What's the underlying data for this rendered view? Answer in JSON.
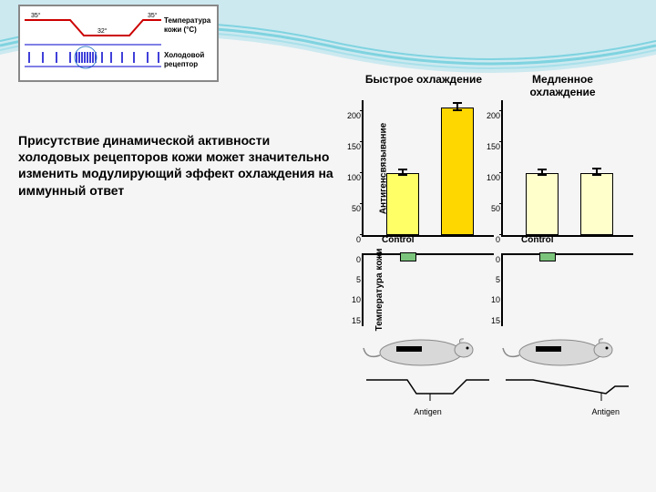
{
  "background": {
    "wave_colors": [
      "#7fd3e0",
      "#a8e0ea",
      "#cce9f0"
    ]
  },
  "top_diagram": {
    "temp_label": "Температура\nкожи (°C)",
    "receptor_label": "Холодовой\nрецептор",
    "temp_levels": [
      "35°",
      "32°",
      "35°"
    ],
    "line_color": "#cc0000",
    "tick_color": "#0000cc"
  },
  "main_text": "Присутствие динамической активности холодовых рецепторов кожи может значительно изменить модулирующий эффект охлаждения на иммунный ответ",
  "columns": {
    "left_title": "Быстрое охлаждение",
    "right_title": "Медленное\nохлаждение"
  },
  "bar_charts": {
    "ylabel": "Антигенсвязывание",
    "left": {
      "yticks": [
        0,
        50,
        100,
        150,
        200
      ],
      "ymax": 220,
      "bars": [
        {
          "x": 25,
          "value": 100,
          "err": 4,
          "fill": "#ffff66",
          "label": "Control"
        },
        {
          "x": 85,
          "value": 205,
          "err": 6,
          "fill": "#ffd700",
          "label": ""
        }
      ]
    },
    "right": {
      "yticks": [
        0,
        50,
        100,
        150,
        200
      ],
      "ymax": 220,
      "bars": [
        {
          "x": 25,
          "value": 100,
          "err": 4,
          "fill": "#ffffcc",
          "label": "Control"
        },
        {
          "x": 85,
          "value": 100,
          "err": 5,
          "fill": "#ffffcc",
          "label": ""
        }
      ]
    }
  },
  "temp_charts": {
    "ylabel": "Температура кожи",
    "yticks": [
      0,
      5,
      10,
      15
    ],
    "ymax": 18,
    "left_marker_x": 40,
    "right_marker_x": 40
  },
  "mice": {
    "fill": "#d8d8d8",
    "stroke": "#888",
    "patch_left": {
      "x": 38,
      "w": 28,
      "color": "#000000"
    },
    "patch_right": {
      "x": 38,
      "w": 28,
      "color": "#000000"
    },
    "line_color": "#000",
    "label": "Antigen"
  }
}
